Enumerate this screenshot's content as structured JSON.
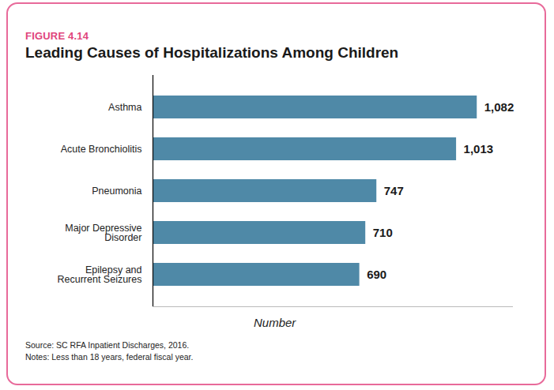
{
  "chart_data": {
    "type": "bar",
    "figure_label": "FIGURE 4.14",
    "title": "Leading Causes of Hospitalizations Among Children",
    "x_label": "Number",
    "categories": [
      "Asthma",
      "Acute Bronchiolitis",
      "Pneumonia",
      "Major Depressive Disorder",
      "Epilepsy and Recurrent Seizures"
    ],
    "values": [
      1082,
      1013,
      747,
      710,
      690
    ],
    "value_labels": [
      "1,082",
      "1,013",
      "747",
      "710",
      "690"
    ],
    "color": "#4f89a7",
    "xlim": [
      0,
      1200
    ],
    "orientation": "horizontal",
    "data_labels": true,
    "tick_labels": "y",
    "grid": false,
    "source": "Source: SC RFA Inpatient Discharges, 2016.",
    "notes": "Notes: Less than 18 years, federal fiscal year."
  }
}
